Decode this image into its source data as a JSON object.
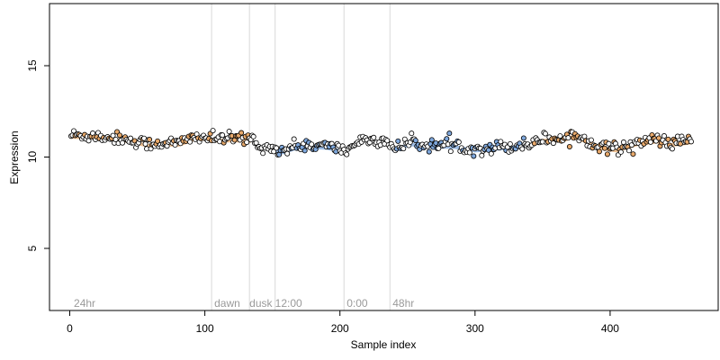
{
  "chart_data": {
    "type": "scatter",
    "title": "",
    "xlabel": "Sample index",
    "ylabel": "Expression",
    "xlim": [
      -15,
      480
    ],
    "ylim": [
      1.6,
      18.4
    ],
    "xticks": [
      0,
      100,
      200,
      300,
      400
    ],
    "yticks": [
      5,
      10,
      15
    ],
    "grid": false,
    "legend": "none",
    "vlines": [
      105,
      133,
      152,
      203,
      237
    ],
    "annotations": [
      {
        "text": "24hr",
        "x": 3,
        "y": 2
      },
      {
        "text": "dawn",
        "x": 107,
        "y": 2
      },
      {
        "text": "dusk",
        "x": 133,
        "y": 2
      },
      {
        "text": "12:00",
        "x": 152,
        "y": 2
      },
      {
        "text": "0:00",
        "x": 205,
        "y": 2
      },
      {
        "text": "48hr",
        "x": 239,
        "y": 2
      }
    ],
    "colors": {
      "point_stroke": "#000000",
      "point_fill": "#ffffff",
      "band_high": "#e8a96b",
      "band_low": "#7ea7dc",
      "vline": "#d9d9d9",
      "annotation": "#9a9a9a"
    },
    "trend_anchors": [
      [
        1,
        11.2
      ],
      [
        20,
        11.15
      ],
      [
        40,
        11.0
      ],
      [
        60,
        10.7
      ],
      [
        70,
        10.8
      ],
      [
        80,
        10.75
      ],
      [
        95,
        11.15
      ],
      [
        105,
        11.0
      ],
      [
        132,
        11.0
      ],
      [
        145,
        10.55
      ],
      [
        158,
        10.35
      ],
      [
        170,
        10.65
      ],
      [
        190,
        10.6
      ],
      [
        205,
        10.35
      ],
      [
        215,
        10.95
      ],
      [
        235,
        10.95
      ],
      [
        240,
        10.45
      ],
      [
        252,
        10.8
      ],
      [
        265,
        10.65
      ],
      [
        285,
        10.65
      ],
      [
        300,
        10.45
      ],
      [
        315,
        10.55
      ],
      [
        330,
        10.6
      ],
      [
        340,
        10.75
      ],
      [
        350,
        11.0
      ],
      [
        365,
        11.0
      ],
      [
        372,
        11.2
      ],
      [
        385,
        10.9
      ],
      [
        392,
        10.6
      ],
      [
        405,
        10.45
      ],
      [
        420,
        10.8
      ],
      [
        435,
        10.95
      ],
      [
        445,
        10.75
      ],
      [
        455,
        10.85
      ],
      [
        460,
        10.9
      ]
    ],
    "n_points": 460,
    "noise_sd": 0.17,
    "band_segments": [
      {
        "x0": 1,
        "x1": 105,
        "tone": "high"
      },
      {
        "x0": 105,
        "x1": 133,
        "tone": "high"
      },
      {
        "x0": 152,
        "x1": 200,
        "tone": "low"
      },
      {
        "x0": 240,
        "x1": 340,
        "tone": "low"
      },
      {
        "x0": 340,
        "x1": 460,
        "tone": "high"
      }
    ]
  }
}
